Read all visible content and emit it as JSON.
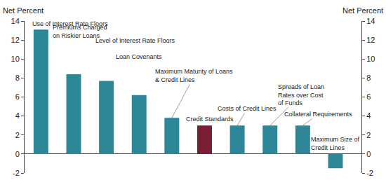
{
  "chart_data": {
    "type": "bar",
    "y_label": "Net Percent",
    "categories": [
      "Use of Interest Rate Floors",
      "Premiums Charged on Riskier Loans",
      "Level of Interest Rate Floors",
      "Loan Covenants",
      "Maximum Maturity of Loans & Credit Lines",
      "Credit Standards",
      "Costs of Credit Lines",
      "Spreads of Loan Rates over Cost of Funds",
      "Collateral Requirements",
      "Maximum Size of Credit Lines"
    ],
    "values": [
      13.1,
      8.4,
      7.7,
      6.2,
      3.8,
      3.0,
      3.0,
      3.0,
      3.0,
      -1.5
    ],
    "colors": [
      "#2e8799",
      "#2e8799",
      "#2e8799",
      "#2e8799",
      "#2e8799",
      "#7a1e36",
      "#2e8799",
      "#2e8799",
      "#2e8799",
      "#2e8799"
    ],
    "ylim": [
      -2,
      14
    ],
    "yticks": [
      -2,
      0,
      2,
      4,
      6,
      8,
      10,
      12,
      14
    ],
    "grid": false,
    "tick_labels": "y"
  }
}
